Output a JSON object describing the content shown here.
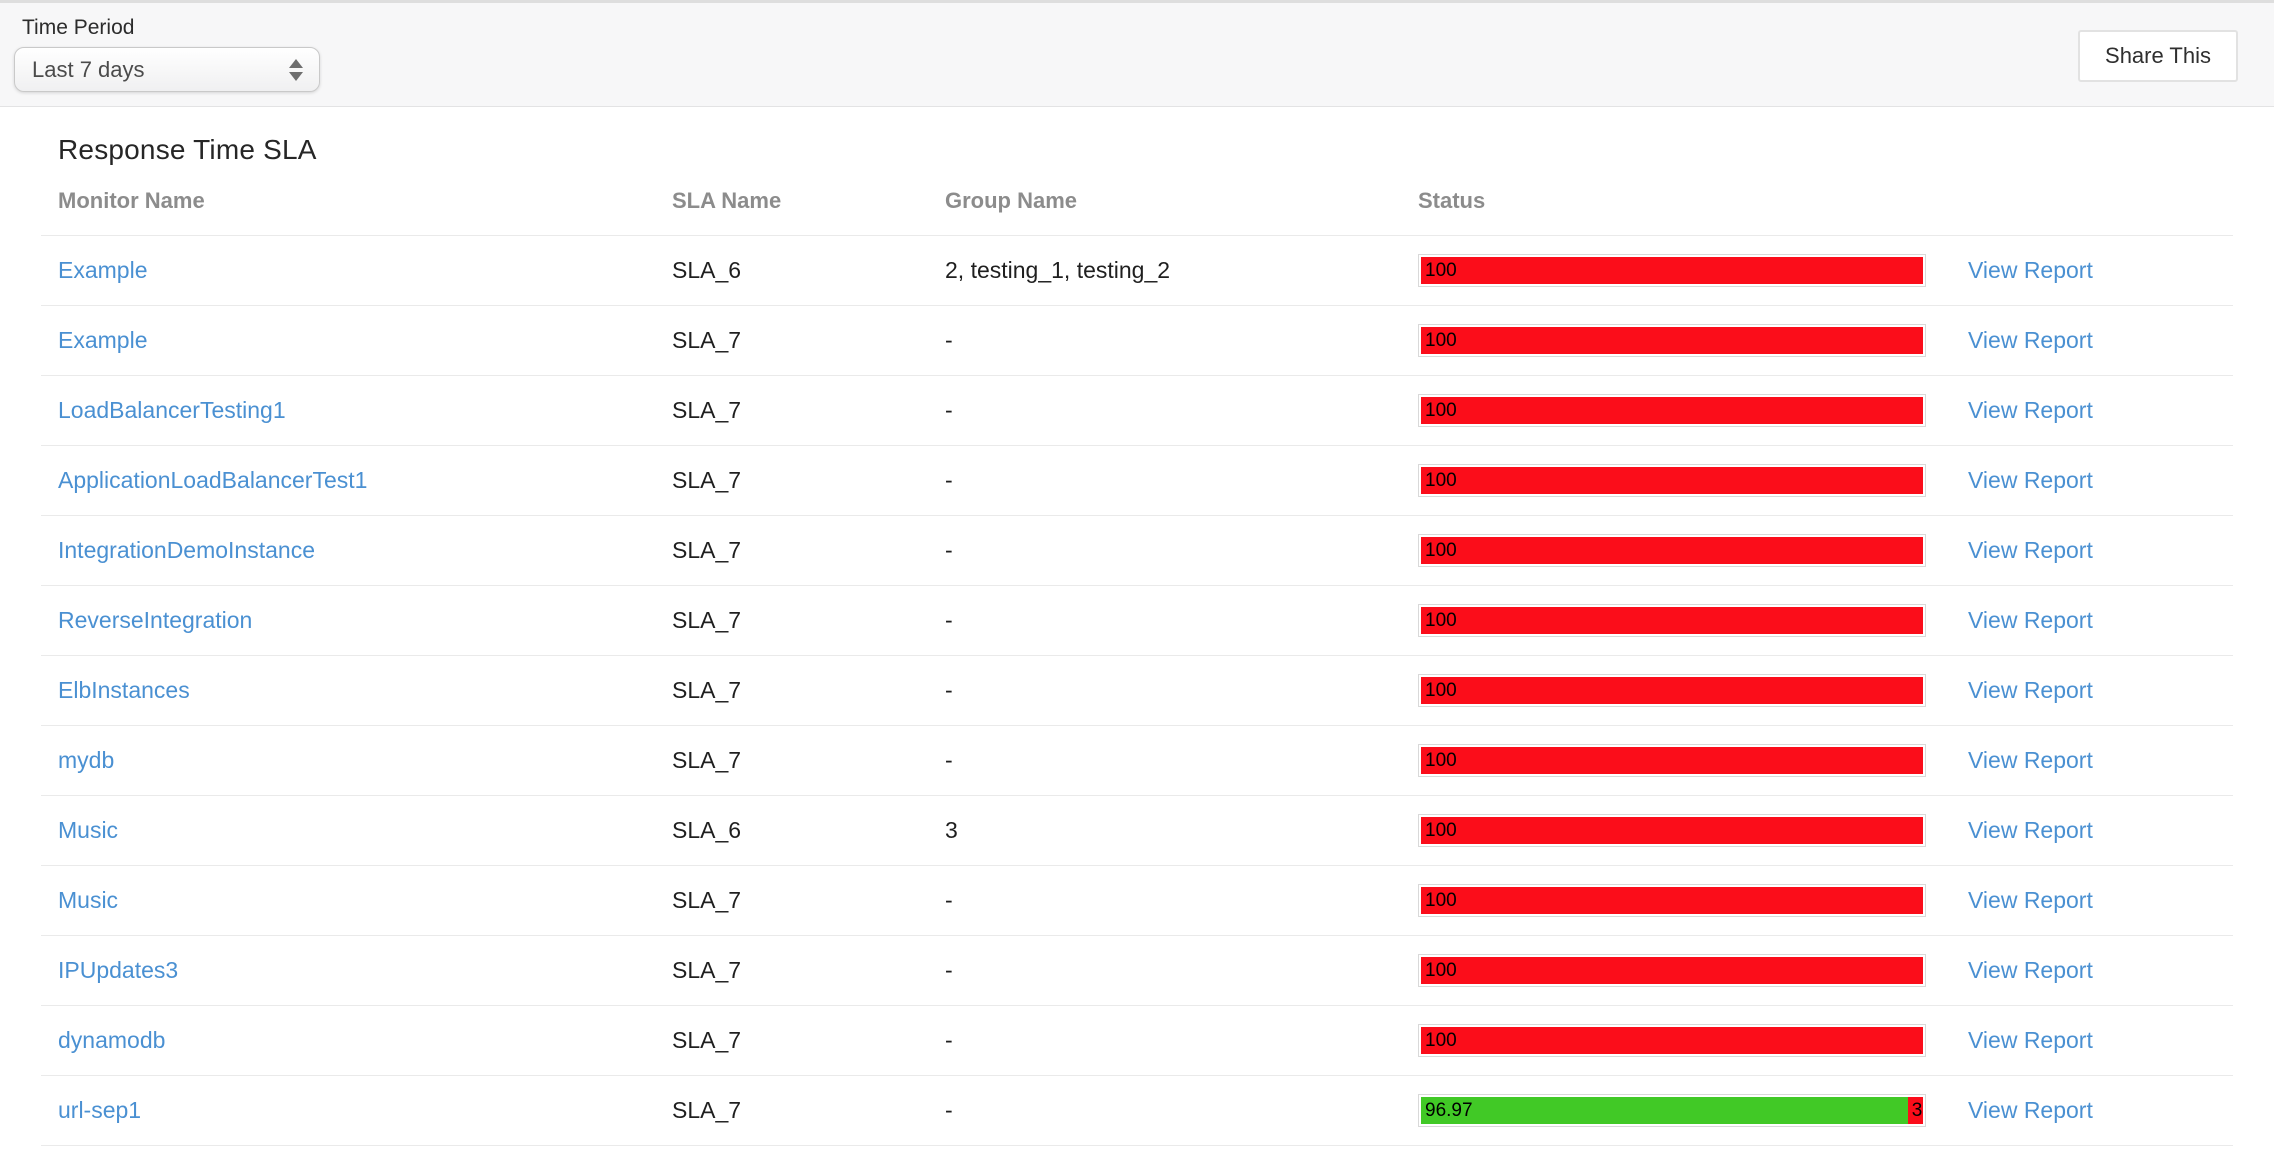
{
  "toolbar": {
    "time_period_label": "Time Period",
    "time_period_value": "Last 7 days",
    "share_button_label": "Share This"
  },
  "report": {
    "title": "Response Time SLA",
    "columns": {
      "monitor": "Monitor Name",
      "sla": "SLA Name",
      "group": "Group Name",
      "status": "Status"
    },
    "view_report_label": "View Report",
    "rows": [
      {
        "monitor": "Example",
        "sla": "SLA_6",
        "group": "2, testing_1, testing_2",
        "status_segments": [
          {
            "label": "100",
            "value": 100,
            "color": "#fb0d1a"
          }
        ]
      },
      {
        "monitor": "Example",
        "sla": "SLA_7",
        "group": "-",
        "status_segments": [
          {
            "label": "100",
            "value": 100,
            "color": "#fb0d1a"
          }
        ]
      },
      {
        "monitor": "LoadBalancerTesting1",
        "sla": "SLA_7",
        "group": "-",
        "status_segments": [
          {
            "label": "100",
            "value": 100,
            "color": "#fb0d1a"
          }
        ]
      },
      {
        "monitor": "ApplicationLoadBalancerTest1",
        "sla": "SLA_7",
        "group": "-",
        "status_segments": [
          {
            "label": "100",
            "value": 100,
            "color": "#fb0d1a"
          }
        ]
      },
      {
        "monitor": "IntegrationDemoInstance",
        "sla": "SLA_7",
        "group": "-",
        "status_segments": [
          {
            "label": "100",
            "value": 100,
            "color": "#fb0d1a"
          }
        ]
      },
      {
        "monitor": "ReverseIntegration",
        "sla": "SLA_7",
        "group": "-",
        "status_segments": [
          {
            "label": "100",
            "value": 100,
            "color": "#fb0d1a"
          }
        ]
      },
      {
        "monitor": "ElbInstances",
        "sla": "SLA_7",
        "group": "-",
        "status_segments": [
          {
            "label": "100",
            "value": 100,
            "color": "#fb0d1a"
          }
        ]
      },
      {
        "monitor": "mydb",
        "sla": "SLA_7",
        "group": "-",
        "status_segments": [
          {
            "label": "100",
            "value": 100,
            "color": "#fb0d1a"
          }
        ]
      },
      {
        "monitor": "Music",
        "sla": "SLA_6",
        "group": "3",
        "status_segments": [
          {
            "label": "100",
            "value": 100,
            "color": "#fb0d1a"
          }
        ]
      },
      {
        "monitor": "Music",
        "sla": "SLA_7",
        "group": "-",
        "status_segments": [
          {
            "label": "100",
            "value": 100,
            "color": "#fb0d1a"
          }
        ]
      },
      {
        "monitor": "IPUpdates3",
        "sla": "SLA_7",
        "group": "-",
        "status_segments": [
          {
            "label": "100",
            "value": 100,
            "color": "#fb0d1a"
          }
        ]
      },
      {
        "monitor": "dynamodb",
        "sla": "SLA_7",
        "group": "-",
        "status_segments": [
          {
            "label": "100",
            "value": 100,
            "color": "#fb0d1a"
          }
        ]
      },
      {
        "monitor": "url-sep1",
        "sla": "SLA_7",
        "group": "-",
        "status_segments": [
          {
            "label": "96.97",
            "value": 96.97,
            "color": "#41c926"
          },
          {
            "label": "3",
            "value": 3.03,
            "color": "#fb0d1a"
          }
        ]
      }
    ]
  },
  "colors": {
    "status_red": "#fb0d1a",
    "status_green": "#41c926",
    "link_blue": "#4a90d2",
    "topbar_bg": "#f7f7f8"
  }
}
